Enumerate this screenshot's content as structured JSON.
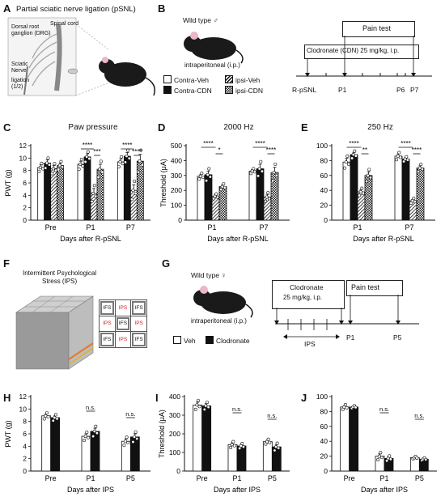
{
  "panel_labels": {
    "A": "A",
    "B": "B",
    "C": "C",
    "D": "D",
    "E": "E",
    "F": "F",
    "G": "G",
    "H": "H",
    "I": "I",
    "J": "J"
  },
  "panel_a": {
    "title": "Partial sciatic nerve ligation (pSNL)",
    "labels": {
      "drg": "Dorsal root\nganglion (DRG)",
      "spinal_cord": "Spinal cord",
      "sciatic_nerve": "Sciatic\nNerve",
      "ligation": "ligation\n(1/2)"
    }
  },
  "panel_b": {
    "mouse_label": "Wild type ♂",
    "ip_label": "intraperitoneal (i.p.)",
    "legend": [
      "Contra-Veh",
      "ipsi-Veh",
      "Contra-CDN",
      "ipsi-CDN"
    ],
    "pain_test": "Pain test",
    "treatment": "Clodronate (CDN) 25 mg/kg, i.p.",
    "timeline_labels": [
      "R-pSNL",
      "P1",
      "P6",
      "P7"
    ]
  },
  "panel_f": {
    "title": "Intermittent Psychological\nStress (IPS)",
    "cells": [
      "IFS",
      "IPS",
      "IFS",
      "IPS",
      "IFS",
      "IPS",
      "IFS",
      "IPS",
      "IFS"
    ]
  },
  "panel_g": {
    "mouse_label": "Wild type ♀",
    "ip_label": "intraperitoneal (i.p.)",
    "treatment_line1": "Clodronate",
    "treatment_line2": "25 mg/kg, i.p.",
    "pain_test": "Pain test",
    "legend": [
      "Veh",
      "Clodronate"
    ],
    "timeline_labels": [
      "IPS",
      "P1",
      "P5"
    ]
  },
  "chart_data": [
    {
      "panel": "C",
      "type": "bar",
      "title": "Paw pressure",
      "ylabel": "PWT (g)",
      "xlabel": "Days after R-pSNL",
      "ylim": [
        0,
        12
      ],
      "yticks": [
        0,
        2,
        4,
        6,
        8,
        10,
        12
      ],
      "categories": [
        "Pre",
        "P1",
        "P7"
      ],
      "series": [
        {
          "name": "Contra-Veh",
          "values": [
            8.5,
            9.0,
            9.4
          ],
          "errors": [
            0.4,
            0.5,
            0.5
          ]
        },
        {
          "name": "Contra-CDN",
          "values": [
            9.2,
            10.2,
            10.3
          ],
          "errors": [
            0.5,
            0.5,
            0.6
          ]
        },
        {
          "name": "ipsi-Veh",
          "values": [
            8.3,
            4.3,
            4.8
          ],
          "errors": [
            0.5,
            0.8,
            0.9
          ]
        },
        {
          "name": "ipsi-CDN",
          "values": [
            8.8,
            8.2,
            9.5
          ],
          "errors": [
            0.4,
            0.8,
            1.1
          ]
        }
      ],
      "significance": [
        {
          "from": [
            1,
            0
          ],
          "to": [
            1,
            2
          ],
          "label": "****"
        },
        {
          "from": [
            1,
            2
          ],
          "to": [
            1,
            3
          ],
          "label": "***"
        },
        {
          "from": [
            2,
            0
          ],
          "to": [
            2,
            2
          ],
          "label": "****"
        },
        {
          "from": [
            2,
            2
          ],
          "to": [
            2,
            3
          ],
          "label": "****"
        }
      ]
    },
    {
      "panel": "D",
      "type": "bar",
      "title": "2000 Hz",
      "ylabel": "Threshold (μA)",
      "xlabel": "Days after R-pSNL",
      "ylim": [
        0,
        500
      ],
      "yticks": [
        0,
        100,
        200,
        300,
        400,
        500
      ],
      "categories": [
        "P1",
        "P7"
      ],
      "series": [
        {
          "name": "Contra-Veh",
          "values": [
            295,
            330
          ],
          "errors": [
            12,
            10
          ]
        },
        {
          "name": "Contra-CDN",
          "values": [
            305,
            345
          ],
          "errors": [
            25,
            30
          ]
        },
        {
          "name": "ipsi-Veh",
          "values": [
            160,
            155
          ],
          "errors": [
            10,
            18
          ]
        },
        {
          "name": "ipsi-CDN",
          "values": [
            225,
            320
          ],
          "errors": [
            12,
            35
          ]
        }
      ],
      "significance": [
        {
          "from": [
            0,
            0
          ],
          "to": [
            0,
            2
          ],
          "label": "****"
        },
        {
          "from": [
            0,
            2
          ],
          "to": [
            0,
            3
          ],
          "label": "*"
        },
        {
          "from": [
            1,
            0
          ],
          "to": [
            1,
            2
          ],
          "label": "****"
        },
        {
          "from": [
            1,
            2
          ],
          "to": [
            1,
            3
          ],
          "label": "****"
        }
      ]
    },
    {
      "panel": "E",
      "type": "bar",
      "title": "250 Hz",
      "ylabel": "",
      "xlabel": "Days after R-pSNL",
      "ylim": [
        0,
        100
      ],
      "yticks": [
        0,
        20,
        40,
        60,
        80,
        100
      ],
      "categories": [
        "P1",
        "P7"
      ],
      "series": [
        {
          "name": "Contra-Veh",
          "values": [
            78,
            86
          ],
          "errors": [
            5,
            3
          ]
        },
        {
          "name": "Contra-CDN",
          "values": [
            88,
            82
          ],
          "errors": [
            3,
            2
          ]
        },
        {
          "name": "ipsi-Veh",
          "values": [
            38,
            26
          ],
          "errors": [
            3,
            2
          ]
        },
        {
          "name": "ipsi-CDN",
          "values": [
            60,
            70
          ],
          "errors": [
            5,
            3
          ]
        }
      ],
      "significance": [
        {
          "from": [
            0,
            0
          ],
          "to": [
            0,
            2
          ],
          "label": "****"
        },
        {
          "from": [
            0,
            2
          ],
          "to": [
            0,
            3
          ],
          "label": "**"
        },
        {
          "from": [
            1,
            0
          ],
          "to": [
            1,
            2
          ],
          "label": "****"
        },
        {
          "from": [
            1,
            2
          ],
          "to": [
            1,
            3
          ],
          "label": "****"
        }
      ]
    },
    {
      "panel": "H",
      "type": "bar",
      "title": "",
      "ylabel": "PWT (g)",
      "xlabel": "Days after IPS",
      "ylim": [
        0,
        12
      ],
      "yticks": [
        0,
        2,
        4,
        6,
        8,
        10,
        12
      ],
      "categories": [
        "Pre",
        "P1",
        "P5"
      ],
      "series": [
        {
          "name": "Veh",
          "values": [
            8.9,
            5.6,
            4.8
          ],
          "errors": [
            0.3,
            0.4,
            0.4
          ]
        },
        {
          "name": "Clodronate",
          "values": [
            8.6,
            6.4,
            5.5
          ],
          "errors": [
            0.3,
            0.5,
            0.5
          ]
        }
      ],
      "significance": [
        {
          "from": [
            1,
            0
          ],
          "to": [
            1,
            1
          ],
          "label": "n.s."
        },
        {
          "from": [
            2,
            0
          ],
          "to": [
            2,
            1
          ],
          "label": "n.s."
        }
      ]
    },
    {
      "panel": "I",
      "type": "bar",
      "title": "",
      "ylabel": "Threshold (μA)",
      "xlabel": "Days after IPS",
      "ylim": [
        0,
        400
      ],
      "yticks": [
        0,
        100,
        200,
        300,
        400
      ],
      "categories": [
        "Pre",
        "P1",
        "P5"
      ],
      "series": [
        {
          "name": "Veh",
          "values": [
            355,
            142,
            158
          ],
          "errors": [
            15,
            10,
            8
          ]
        },
        {
          "name": "Clodronate",
          "values": [
            350,
            135,
            130
          ],
          "errors": [
            12,
            8,
            12
          ]
        }
      ],
      "significance": [
        {
          "from": [
            1,
            0
          ],
          "to": [
            1,
            1
          ],
          "label": "n.s."
        },
        {
          "from": [
            2,
            0
          ],
          "to": [
            2,
            1
          ],
          "label": "n.s."
        }
      ]
    },
    {
      "panel": "J",
      "type": "bar",
      "title": "",
      "ylabel": "",
      "xlabel": "Days after IPS",
      "ylim": [
        0,
        100
      ],
      "yticks": [
        0,
        20,
        40,
        60,
        80,
        100
      ],
      "categories": [
        "Pre",
        "P1",
        "P5"
      ],
      "series": [
        {
          "name": "Veh",
          "values": [
            86,
            20,
            18
          ],
          "errors": [
            2,
            3,
            1
          ]
        },
        {
          "name": "Clodronate",
          "values": [
            86,
            17,
            16
          ],
          "errors": [
            1,
            2,
            1
          ]
        }
      ],
      "significance": [
        {
          "from": [
            1,
            0
          ],
          "to": [
            1,
            1
          ],
          "label": "n.s."
        },
        {
          "from": [
            2,
            0
          ],
          "to": [
            2,
            1
          ],
          "label": "n.s."
        }
      ]
    }
  ]
}
